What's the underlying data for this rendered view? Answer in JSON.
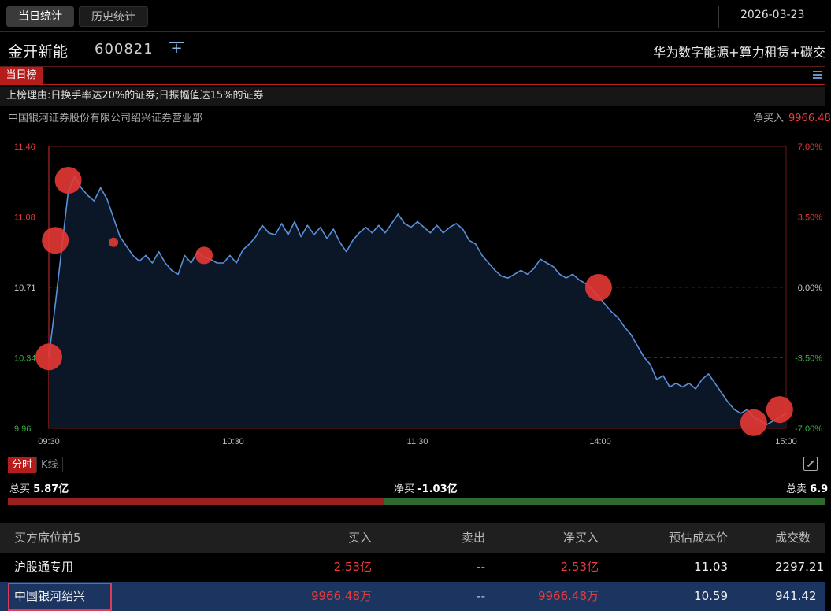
{
  "tabs": [
    {
      "label": "当日统计",
      "active": true
    },
    {
      "label": "历史统计",
      "active": false
    }
  ],
  "date": "2026-03-23",
  "stock": {
    "name": "金开新能",
    "code": "600821",
    "concepts": "华为数字能源+算力租赁+碳交"
  },
  "board": {
    "tag": "当日榜",
    "reason": "上榜理由:日换手率达20%的证券;日振幅值达15%的证券"
  },
  "seat": {
    "name": "中国银河证券股份有限公司绍兴证券营业部",
    "net_label": "净买入",
    "net_value": "9966.48"
  },
  "chart_data": {
    "type": "line",
    "x_ticks": [
      "09:30",
      "10:30",
      "11:30",
      "14:00",
      "15:00"
    ],
    "y_ticks_left": [
      "11.46",
      "11.08",
      "10.71",
      "10.34",
      "9.96"
    ],
    "y_ticks_right": [
      "7.00%",
      "3.50%",
      "0.00%",
      "-3.50%",
      "-7.00%"
    ],
    "ylim": [
      9.96,
      11.46
    ],
    "grid": true,
    "line_color": "#5b8fd9",
    "price_series": [
      10.34,
      10.62,
      10.92,
      11.22,
      11.3,
      11.24,
      11.2,
      11.17,
      11.24,
      11.18,
      11.08,
      10.98,
      10.93,
      10.88,
      10.85,
      10.88,
      10.84,
      10.9,
      10.84,
      10.8,
      10.78,
      10.88,
      10.84,
      10.9,
      10.87,
      10.86,
      10.84,
      10.84,
      10.88,
      10.84,
      10.91,
      10.94,
      10.98,
      11.04,
      11.0,
      10.99,
      11.05,
      10.99,
      11.06,
      10.98,
      11.04,
      10.99,
      11.03,
      10.97,
      11.02,
      10.95,
      10.9,
      10.96,
      11.0,
      11.03,
      11.0,
      11.04,
      11.0,
      11.05,
      11.1,
      11.05,
      11.03,
      11.06,
      11.03,
      11.0,
      11.04,
      11.0,
      11.03,
      11.05,
      11.02,
      10.96,
      10.94,
      10.88,
      10.84,
      10.8,
      10.77,
      10.76,
      10.78,
      10.8,
      10.78,
      10.81,
      10.86,
      10.84,
      10.82,
      10.78,
      10.76,
      10.78,
      10.75,
      10.73,
      10.7,
      10.66,
      10.62,
      10.58,
      10.55,
      10.5,
      10.46,
      10.4,
      10.34,
      10.3,
      10.22,
      10.24,
      10.18,
      10.2,
      10.18,
      10.2,
      10.17,
      10.22,
      10.25,
      10.2,
      10.15,
      10.1,
      10.06,
      10.04,
      10.06,
      10.02,
      10.0,
      9.98,
      10.0,
      10.02,
      10.04
    ],
    "trade_markers": [
      {
        "idx": 0,
        "price": 10.34,
        "size": "large"
      },
      {
        "idx": 1,
        "price": 10.96,
        "size": "large"
      },
      {
        "idx": 3,
        "price": 11.28,
        "size": "large"
      },
      {
        "idx": 10,
        "price": 10.95,
        "size": "small"
      },
      {
        "idx": 24,
        "price": 10.88,
        "size": "medium"
      },
      {
        "idx": 85,
        "price": 10.71,
        "size": "large"
      },
      {
        "idx": 109,
        "price": 9.99,
        "size": "large"
      },
      {
        "idx": 113,
        "price": 10.06,
        "size": "large"
      }
    ],
    "marker_color": "#e53935"
  },
  "chart_modes": [
    {
      "label": "分时",
      "active": true
    },
    {
      "label": "K线",
      "active": false
    }
  ],
  "flow": {
    "total_buy_label": "总买",
    "total_buy": "5.87亿",
    "net_label": "净买",
    "net": "-1.03亿",
    "total_sell_label": "总卖",
    "total_sell": "6.9",
    "buy_share": 0.46,
    "buy_color": "#9a1f1f",
    "sell_color": "#2f6b2f"
  },
  "table": {
    "headers": [
      "买方席位前5",
      "买入",
      "卖出",
      "净买入",
      "预估成本价",
      "成交数"
    ],
    "rows": [
      [
        "沪股通专用",
        "2.53亿",
        "--",
        "2.53亿",
        "11.03",
        "2297.21"
      ],
      [
        "中国银河绍兴",
        "9966.48万",
        "--",
        "9966.48万",
        "10.59",
        "941.42"
      ]
    ]
  }
}
